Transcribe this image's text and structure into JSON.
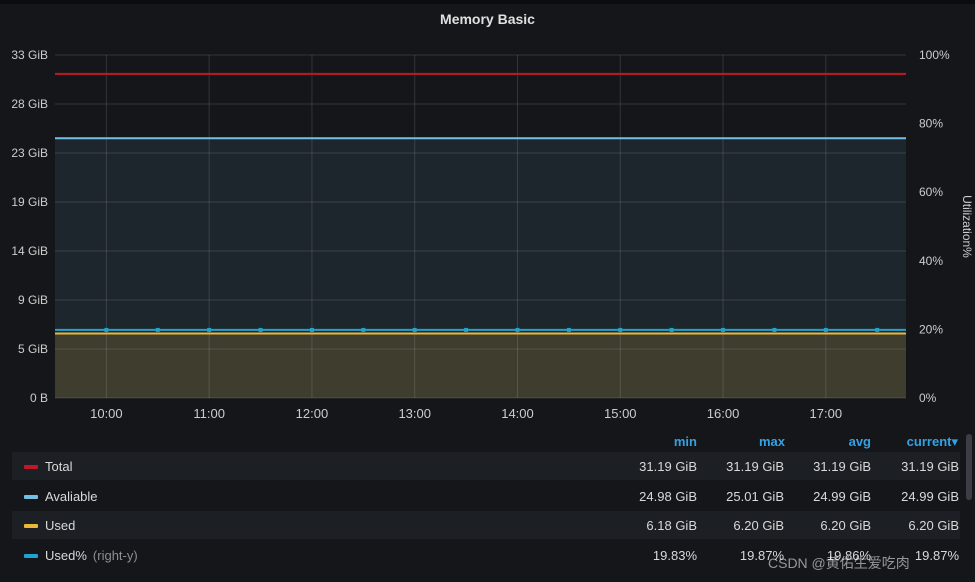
{
  "panel": {
    "title": "Memory Basic"
  },
  "chart_data": {
    "type": "line",
    "title": "Memory Basic",
    "x": [
      "10:00",
      "11:00",
      "12:00",
      "13:00",
      "14:00",
      "15:00",
      "16:00",
      "17:00"
    ],
    "left_axis": {
      "ticks": [
        "0 B",
        "5 GiB",
        "9 GiB",
        "14 GiB",
        "19 GiB",
        "23 GiB",
        "28 GiB",
        "33 GiB"
      ],
      "ylim": [
        0,
        33
      ]
    },
    "right_axis": {
      "label": "Utilization%",
      "ticks": [
        "0%",
        "20%",
        "40%",
        "60%",
        "80%",
        "100%"
      ],
      "ylim": [
        0,
        100
      ]
    },
    "grid": true,
    "legend_placement": "bottom",
    "series": [
      {
        "name": "Total",
        "color": "#c4162a",
        "axis": "left",
        "value": 31.19,
        "fill": false
      },
      {
        "name": "Avaliable",
        "color": "#73bfe5",
        "axis": "left",
        "value": 24.99,
        "fill": true
      },
      {
        "name": "Used",
        "color": "#eab839",
        "axis": "left",
        "value": 6.2,
        "fill": true
      },
      {
        "name": "Used%",
        "color": "#1fa3d1",
        "axis": "right",
        "value": 19.85,
        "fill": false,
        "points": true
      }
    ]
  },
  "legend": {
    "headers": {
      "min": "min",
      "max": "max",
      "avg": "avg",
      "current": "current▾"
    },
    "rows": [
      {
        "name": "Total",
        "axis_note": "",
        "color": "#c4162a",
        "min": "31.19 GiB",
        "max": "31.19 GiB",
        "avg": "31.19 GiB",
        "current": "31.19 GiB"
      },
      {
        "name": "Avaliable",
        "axis_note": "",
        "color": "#73bfe5",
        "min": "24.98 GiB",
        "max": "25.01 GiB",
        "avg": "24.99 GiB",
        "current": "24.99 GiB"
      },
      {
        "name": "Used",
        "axis_note": "",
        "color": "#eab839",
        "min": "6.18 GiB",
        "max": "6.20 GiB",
        "avg": "6.20 GiB",
        "current": "6.20 GiB"
      },
      {
        "name": "Used%",
        "axis_note": "(right-y)",
        "color": "#1fa3d1",
        "min": "19.83%",
        "max": "19.87%",
        "avg": "19.86%",
        "current": "19.87%"
      }
    ]
  },
  "watermark": "CSDN @黄佑生爱吃肉"
}
